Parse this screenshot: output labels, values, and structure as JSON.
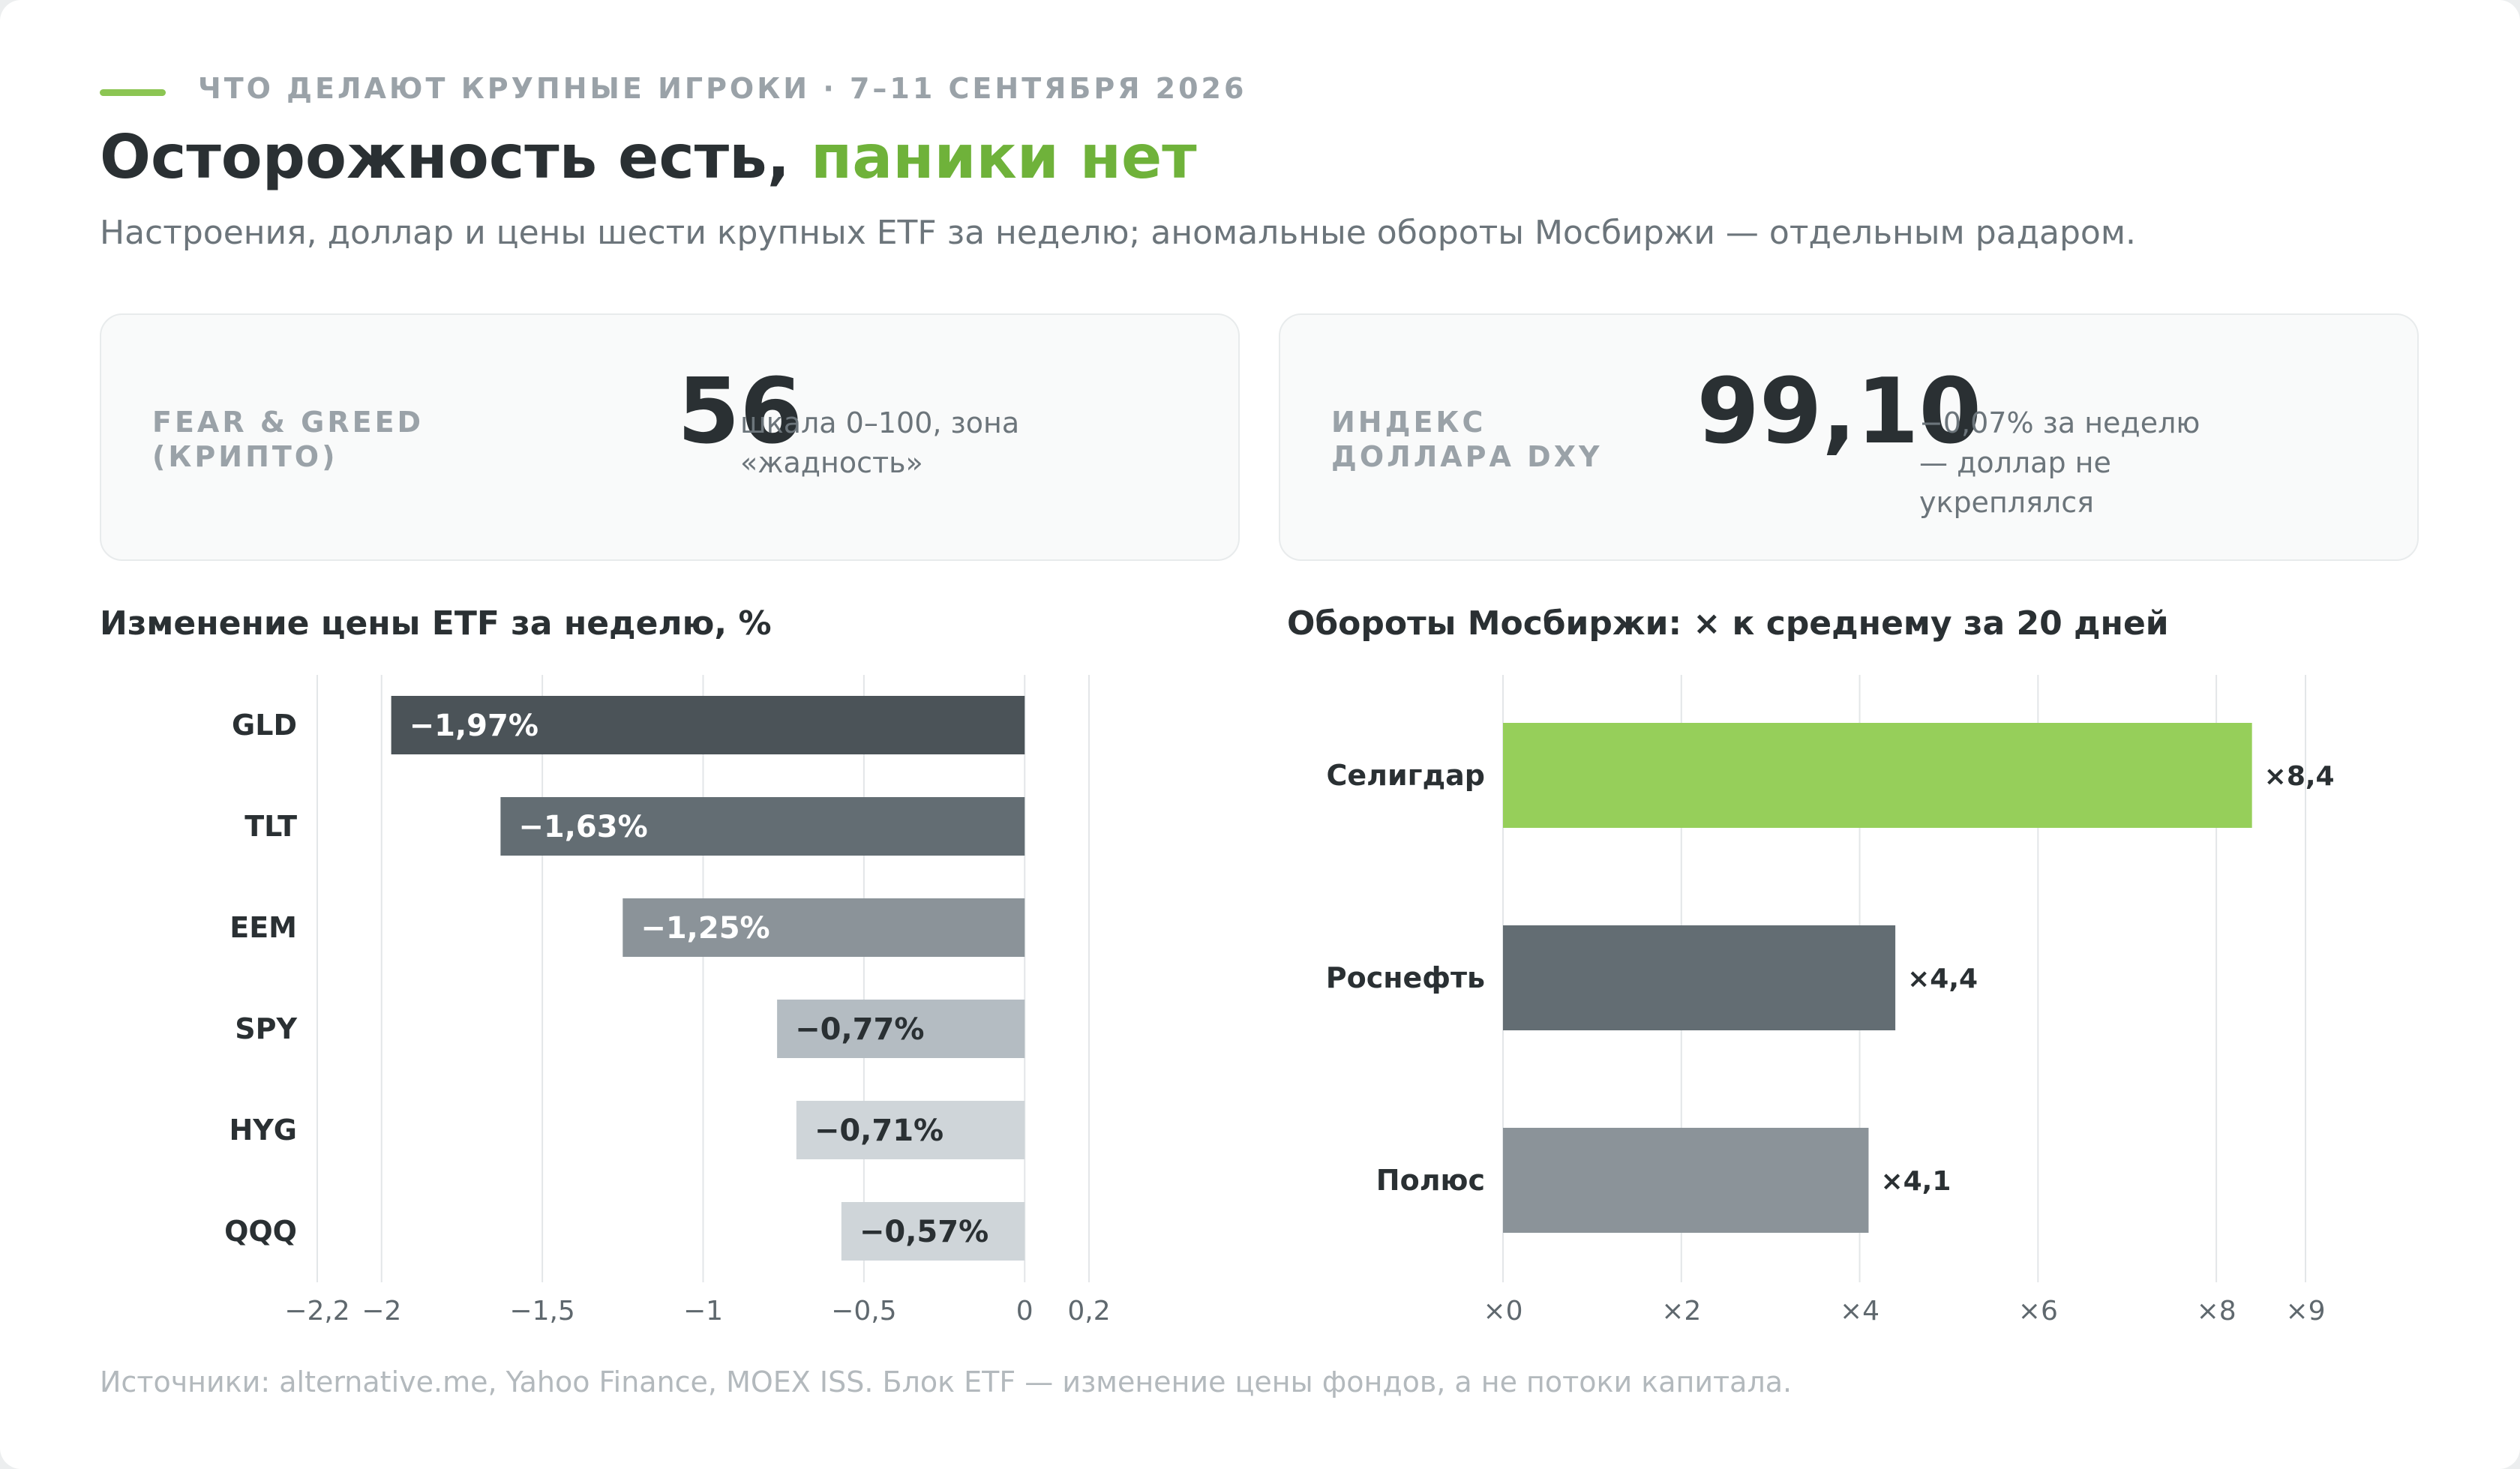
{
  "header": {
    "kicker": "ЧТО ДЕЛАЮТ КРУПНЫЕ ИГРОКИ · 7–11 СЕНТЯБРЯ 2026",
    "title_main": "Осторожность есть, ",
    "title_accent": "паники нет",
    "subtitle": "Настроения, доллар и цены шести крупных ETF за неделю; аномальные обороты Мосбиржи — отдельным радаром."
  },
  "panels": {
    "fear_greed": {
      "label": "FEAR & GREED (КРИПТО)",
      "value": "56",
      "note": "шкала 0–100, зона «жадность»"
    },
    "dxy": {
      "label": "ИНДЕКС ДОЛЛАРА DXY",
      "value": "99,10",
      "note": "−0,07% за неделю — доллар не укреплялся"
    }
  },
  "colors": {
    "accent": "#8cc553",
    "accent_text": "#6fb23a",
    "text_dark": "#2a3033",
    "text_muted": "#6c757b"
  },
  "chart_data": [
    {
      "type": "bar",
      "orientation": "horizontal",
      "title": "Изменение цены ETF за неделю, %",
      "categories": [
        "GLD",
        "TLT",
        "EEM",
        "SPY",
        "HYG",
        "QQQ"
      ],
      "values": [
        -1.97,
        -1.63,
        -1.25,
        -0.77,
        -0.71,
        -0.57
      ],
      "value_labels": [
        "−1,97%",
        "−1,63%",
        "−1,25%",
        "−0,77%",
        "−0,71%",
        "−0,57%"
      ],
      "bar_colors": [
        "#4b5358",
        "#636d73",
        "#8b9399",
        "#b4bcc2",
        "#cfd5d9",
        "#cfd5d9"
      ],
      "label_colors": [
        "#ffffff",
        "#ffffff",
        "#ffffff",
        "#2a3033",
        "#2a3033",
        "#2a3033"
      ],
      "xlim": [
        -2.2,
        0.2
      ],
      "xticks": [
        -2.2,
        -2,
        -1.5,
        -1,
        -0.5,
        0,
        0.2
      ],
      "xtick_labels": [
        "−2,2",
        "−2",
        "−1,5",
        "−1",
        "−0,5",
        "0",
        "0,2"
      ],
      "grid": true
    },
    {
      "type": "bar",
      "orientation": "horizontal",
      "title": "Обороты Мосбиржи: × к среднему за 20 дней",
      "categories": [
        "Селигдар",
        "Роснефть",
        "Полюс"
      ],
      "values": [
        8.4,
        4.4,
        4.1
      ],
      "value_labels": [
        "×8,4",
        "×4,4",
        "×4,1"
      ],
      "bar_colors": [
        "#96cf5a",
        "#636d73",
        "#8b9399"
      ],
      "xlim": [
        0,
        9
      ],
      "xticks": [
        0,
        2,
        4,
        6,
        8,
        9
      ],
      "xtick_labels": [
        "×0",
        "×2",
        "×4",
        "×6",
        "×8",
        "×9"
      ],
      "grid": true
    }
  ],
  "footer": {
    "source": "Источники: alternative.me, Yahoo Finance, MOEX ISS. Блок ETF — изменение цены фондов, а не потоки капитала."
  }
}
